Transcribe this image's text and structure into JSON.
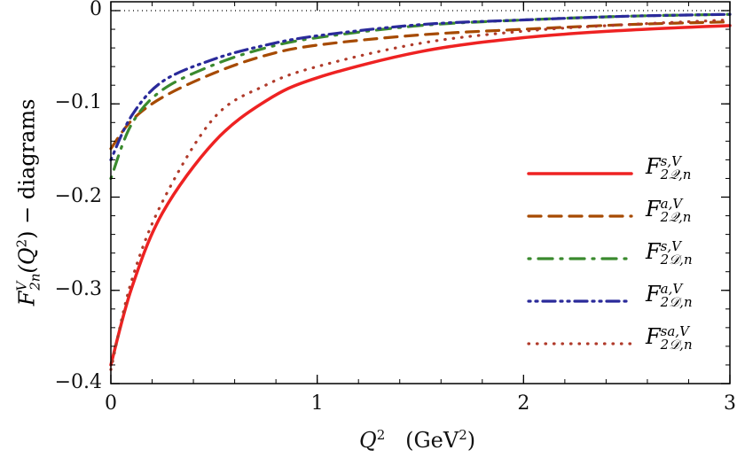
{
  "chart_data": {
    "type": "line",
    "xlabel": {
      "base": "Q",
      "sup": "2",
      "unit": "(GeV",
      "unit_sup": "2",
      "unit_close": ")"
    },
    "ylabel": {
      "base": "F",
      "sup": "V",
      "sub": "2n",
      "arg": "(Q",
      "arg_sup": "2",
      "arg_close": ")",
      "suffix": " − diagrams"
    },
    "xlim": [
      0,
      3
    ],
    "ylim": [
      -0.4,
      0.005
    ],
    "x_ticks": [
      {
        "v": 0,
        "label": "0"
      },
      {
        "v": 1,
        "label": "1"
      },
      {
        "v": 2,
        "label": "2"
      },
      {
        "v": 3,
        "label": "3"
      }
    ],
    "y_ticks": [
      {
        "v": 0,
        "label": "0"
      },
      {
        "v": -0.1,
        "label": "−0.1"
      },
      {
        "v": -0.2,
        "label": "−0.2"
      },
      {
        "v": -0.3,
        "label": "−0.3"
      },
      {
        "v": -0.4,
        "label": "−0.4"
      }
    ],
    "x_minor_step": 0.2,
    "y_minor_step": 0.02,
    "grid": false,
    "reference_line": {
      "y": 0,
      "style": "dotted",
      "color": "#000000"
    },
    "legend_placement": "right",
    "x": [
      0,
      0.1,
      0.25,
      0.5,
      0.75,
      1,
      1.5,
      2,
      2.5,
      3
    ],
    "series": [
      {
        "name": {
          "base": "F",
          "sup": "s,V",
          "sub": "2𝒬,n"
        },
        "color": "#ee2222",
        "style": "solid",
        "values": [
          -0.38,
          -0.298,
          -0.217,
          -0.141,
          -0.097,
          -0.072,
          -0.044,
          -0.029,
          -0.021,
          -0.016
        ]
      },
      {
        "name": {
          "base": "F",
          "sup": "a,V",
          "sub": "2𝒬,n"
        },
        "color": "#a64a00",
        "style": "dashed",
        "values": [
          -0.148,
          -0.118,
          -0.093,
          -0.067,
          -0.048,
          -0.037,
          -0.026,
          -0.02,
          -0.015,
          -0.012
        ]
      },
      {
        "name": {
          "base": "F",
          "sup": "s,V",
          "sub": "2𝒟,n"
        },
        "color": "#3a8a2e",
        "style": "dash-dot",
        "values": [
          -0.18,
          -0.122,
          -0.085,
          -0.058,
          -0.04,
          -0.029,
          -0.016,
          -0.01,
          -0.006,
          -0.004
        ]
      },
      {
        "name": {
          "base": "F",
          "sup": "a,V",
          "sub": "2𝒟,n"
        },
        "color": "#2a2a9a",
        "style": "dash-dot-dot",
        "values": [
          -0.16,
          -0.113,
          -0.076,
          -0.052,
          -0.037,
          -0.027,
          -0.015,
          -0.01,
          -0.006,
          -0.004
        ]
      },
      {
        "name": {
          "base": "F",
          "sup": "sa,V",
          "sub": "2𝒟,n"
        },
        "color": "#b03a2a",
        "style": "dotted",
        "values": [
          -0.385,
          -0.29,
          -0.205,
          -0.115,
          -0.08,
          -0.06,
          -0.035,
          -0.022,
          -0.015,
          -0.01
        ]
      }
    ]
  }
}
